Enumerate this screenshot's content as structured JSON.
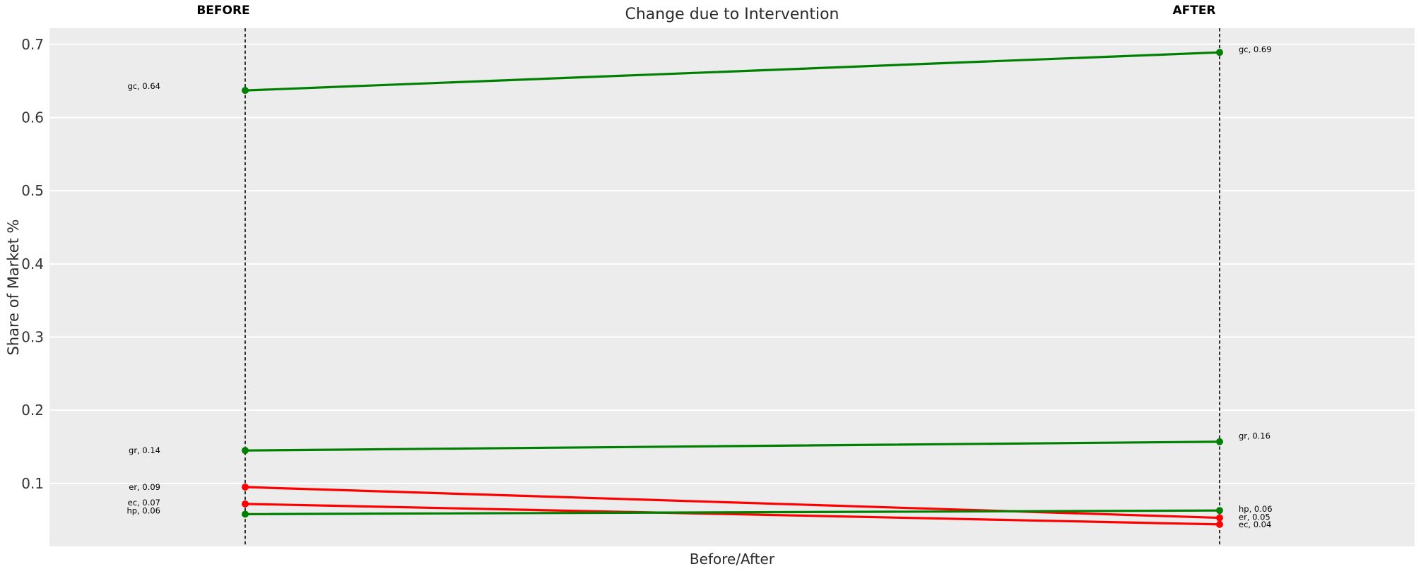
{
  "title": "Change due to Intervention",
  "axes": {
    "x_label": "Before/After",
    "y_label": "Share of Market %"
  },
  "columns": {
    "before": "BEFORE",
    "after": "AFTER"
  },
  "colors": {
    "increase": "#008000",
    "decrease": "#ff0000",
    "plot_background": "#ececec",
    "gridline": "#ffffff",
    "guide_line": "#111111",
    "figure_background": "#ffffff"
  },
  "chart_data": {
    "type": "line",
    "subtype": "slopegraph",
    "title": "Change due to Intervention",
    "xlabel": "Before/After",
    "ylabel": "Share of Market %",
    "categories": [
      "BEFORE",
      "AFTER"
    ],
    "yticks": [
      0.1,
      0.2,
      0.3,
      0.4,
      0.5,
      0.6,
      0.7
    ],
    "ylim": [
      0.014,
      0.722
    ],
    "grid": true,
    "legend": false,
    "series": [
      {
        "name": "gc",
        "values": [
          0.64,
          0.69
        ],
        "plotted": [
          0.637,
          0.689
        ],
        "labels": [
          "gc, 0.64",
          "gc, 0.69"
        ],
        "color": "#008000",
        "trend": "increase"
      },
      {
        "name": "gr",
        "values": [
          0.14,
          0.16
        ],
        "plotted": [
          0.145,
          0.157
        ],
        "labels": [
          "gr, 0.14",
          "gr, 0.16"
        ],
        "color": "#008000",
        "trend": "increase"
      },
      {
        "name": "er",
        "values": [
          0.09,
          0.05
        ],
        "plotted": [
          0.095,
          0.053
        ],
        "labels": [
          "er, 0.09",
          "er, 0.05"
        ],
        "color": "#ff0000",
        "trend": "decrease"
      },
      {
        "name": "ec",
        "values": [
          0.07,
          0.04
        ],
        "plotted": [
          0.072,
          0.044
        ],
        "labels": [
          "ec, 0.07",
          "ec, 0.04"
        ],
        "color": "#ff0000",
        "trend": "decrease"
      },
      {
        "name": "hp",
        "values": [
          0.06,
          0.06
        ],
        "plotted": [
          0.058,
          0.063
        ],
        "labels": [
          "hp, 0.06",
          "hp, 0.06"
        ],
        "color": "#008000",
        "trend": "increase"
      }
    ]
  }
}
